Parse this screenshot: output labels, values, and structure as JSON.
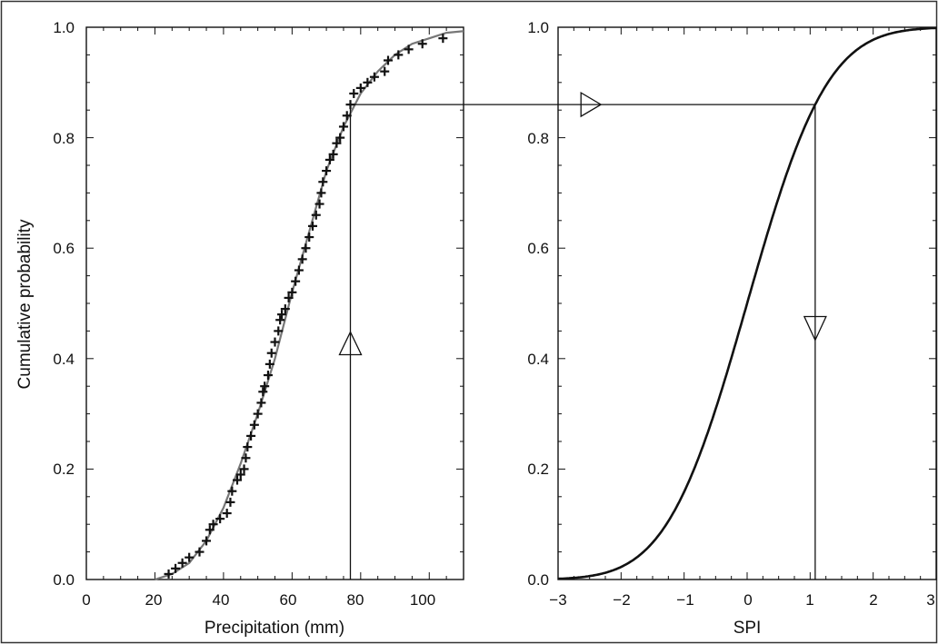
{
  "chart_data": [
    {
      "type": "scatter",
      "title": "",
      "xlabel": "Precipitation (mm)",
      "ylabel": "Cumulative probability",
      "xlim": [
        0,
        110
      ],
      "ylim": [
        0,
        1
      ],
      "xticks": [
        "0",
        "20",
        "40",
        "60",
        "80",
        "100"
      ],
      "yticks": [
        "0.0",
        "0.2",
        "0.4",
        "0.6",
        "0.8",
        "1.0"
      ],
      "grid": false,
      "series": [
        {
          "marker": "+",
          "points": [
            [
              24,
              0.01
            ],
            [
              26,
              0.02
            ],
            [
              28,
              0.03
            ],
            [
              30,
              0.04
            ],
            [
              33,
              0.05
            ],
            [
              35,
              0.07
            ],
            [
              36,
              0.09
            ],
            [
              37,
              0.1
            ],
            [
              39,
              0.11
            ],
            [
              41,
              0.12
            ],
            [
              42,
              0.14
            ],
            [
              42.5,
              0.16
            ],
            [
              44,
              0.18
            ],
            [
              45,
              0.19
            ],
            [
              46,
              0.2
            ],
            [
              46.5,
              0.22
            ],
            [
              47,
              0.24
            ],
            [
              48,
              0.26
            ],
            [
              49,
              0.28
            ],
            [
              50,
              0.3
            ],
            [
              51,
              0.32
            ],
            [
              51.5,
              0.34
            ],
            [
              52,
              0.35
            ],
            [
              53,
              0.37
            ],
            [
              53.5,
              0.39
            ],
            [
              54,
              0.41
            ],
            [
              55,
              0.43
            ],
            [
              56,
              0.45
            ],
            [
              56.5,
              0.47
            ],
            [
              57,
              0.48
            ],
            [
              58,
              0.49
            ],
            [
              59,
              0.51
            ],
            [
              60,
              0.52
            ],
            [
              61,
              0.54
            ],
            [
              62,
              0.56
            ],
            [
              63,
              0.58
            ],
            [
              64,
              0.6
            ],
            [
              65,
              0.62
            ],
            [
              66,
              0.64
            ],
            [
              67,
              0.66
            ],
            [
              68,
              0.68
            ],
            [
              68.5,
              0.7
            ],
            [
              69,
              0.72
            ],
            [
              70,
              0.74
            ],
            [
              71,
              0.76
            ],
            [
              72,
              0.77
            ],
            [
              73,
              0.79
            ],
            [
              74,
              0.8
            ],
            [
              75,
              0.82
            ],
            [
              76,
              0.84
            ],
            [
              77,
              0.86
            ],
            [
              78,
              0.88
            ],
            [
              80,
              0.89
            ],
            [
              82,
              0.9
            ],
            [
              84,
              0.91
            ],
            [
              87,
              0.92
            ],
            [
              88,
              0.94
            ],
            [
              91,
              0.95
            ],
            [
              94,
              0.96
            ],
            [
              98,
              0.97
            ],
            [
              104,
              0.98
            ]
          ]
        },
        {
          "marker": "line",
          "color": "#777777",
          "points": [
            [
              20,
              0.0
            ],
            [
              25,
              0.01
            ],
            [
              30,
              0.03
            ],
            [
              35,
              0.07
            ],
            [
              40,
              0.13
            ],
            [
              45,
              0.21
            ],
            [
              50,
              0.3
            ],
            [
              55,
              0.4
            ],
            [
              60,
              0.52
            ],
            [
              65,
              0.63
            ],
            [
              70,
              0.74
            ],
            [
              75,
              0.82
            ],
            [
              80,
              0.88
            ],
            [
              85,
              0.92
            ],
            [
              90,
              0.95
            ],
            [
              95,
              0.97
            ],
            [
              100,
              0.98
            ],
            [
              105,
              0.99
            ],
            [
              110,
              0.993
            ]
          ]
        }
      ]
    },
    {
      "type": "line",
      "title": "",
      "xlabel": "SPI",
      "ylabel": "",
      "xlim": [
        -3,
        3
      ],
      "ylim": [
        0,
        1
      ],
      "xticks": [
        "−3",
        "−2",
        "−1",
        "0",
        "1",
        "2",
        "3"
      ],
      "yticks": [
        "0.0",
        "0.2",
        "0.4",
        "0.6",
        "0.8",
        "1.0"
      ],
      "grid": false,
      "series": [
        {
          "color": "#111111",
          "function": "standard normal CDF",
          "x_range": [
            -3,
            3
          ]
        }
      ]
    }
  ],
  "transform_example": {
    "precipitation_mm": 77,
    "cumulative_probability": 0.86,
    "spi": 1.08
  }
}
